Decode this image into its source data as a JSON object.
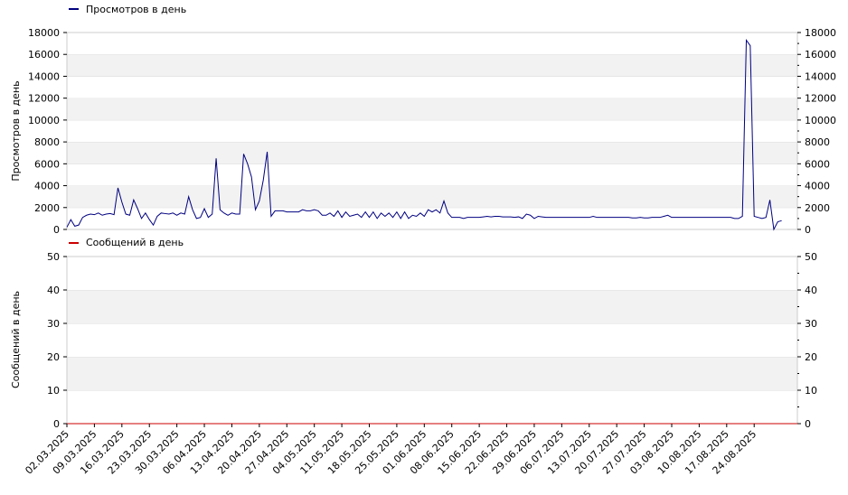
{
  "chart_data": [
    {
      "type": "line",
      "legend": "Просмотров в день",
      "ylabel": "Просмотров в день",
      "color": "#000080",
      "ylim": [
        0,
        18000
      ],
      "yticks": [
        "0",
        "2000",
        "4000",
        "6000",
        "8000",
        "10000",
        "12000",
        "14000",
        "16000",
        "18000"
      ],
      "grid": true,
      "legend_position": "top-left",
      "x_start": "2025-03-02",
      "values": [
        200,
        900,
        300,
        400,
        1100,
        1300,
        1400,
        1350,
        1500,
        1300,
        1400,
        1450,
        1350,
        3800,
        2500,
        1400,
        1300,
        2700,
        1900,
        1000,
        1500,
        900,
        400,
        1200,
        1500,
        1450,
        1400,
        1500,
        1300,
        1500,
        1400,
        3000,
        1800,
        1000,
        1100,
        1900,
        1100,
        1400,
        6500,
        1800,
        1500,
        1300,
        1500,
        1400,
        1400,
        6900,
        6000,
        4800,
        1800,
        2600,
        4500,
        7100,
        1200,
        1700,
        1700,
        1700,
        1600,
        1600,
        1600,
        1600,
        1800,
        1700,
        1700,
        1800,
        1700,
        1300,
        1300,
        1500,
        1200,
        1700,
        1100,
        1600,
        1200,
        1300,
        1400,
        1100,
        1600,
        1100,
        1600,
        1000,
        1500,
        1200,
        1500,
        1100,
        1600,
        1000,
        1600,
        1000,
        1300,
        1200,
        1500,
        1200,
        1800,
        1600,
        1800,
        1500,
        2600,
        1500,
        1100,
        1100,
        1100,
        1000,
        1100,
        1100,
        1100,
        1100,
        1150,
        1200,
        1150,
        1200,
        1200,
        1150,
        1150,
        1150,
        1100,
        1150,
        1000,
        1400,
        1300,
        1000,
        1200,
        1150,
        1100,
        1100,
        1100,
        1100,
        1100,
        1100,
        1100,
        1100,
        1100,
        1100,
        1100,
        1100,
        1200,
        1100,
        1100,
        1100,
        1100,
        1100,
        1100,
        1100,
        1100,
        1100,
        1050,
        1050,
        1100,
        1050,
        1050,
        1100,
        1100,
        1100,
        1200,
        1300,
        1100,
        1100,
        1100,
        1100,
        1100,
        1100,
        1100,
        1100,
        1100,
        1100,
        1100,
        1100,
        1100,
        1100,
        1100,
        1100,
        1000,
        1000,
        1200,
        17300,
        16800,
        1200,
        1100,
        1000,
        1100,
        2700,
        0,
        700,
        800
      ]
    },
    {
      "type": "line",
      "legend": "Сообщений в день",
      "ylabel": "Сообщений в день",
      "color": "#cc0000",
      "ylim": [
        0,
        50
      ],
      "yticks": [
        "0",
        "10",
        "20",
        "30",
        "40",
        "50"
      ],
      "grid": true,
      "legend_position": "top-left",
      "x_start": "2025-03-02",
      "values": [
        0,
        0,
        0,
        0,
        0,
        0,
        0,
        0,
        0,
        0,
        0,
        0,
        0,
        0,
        0,
        0,
        0,
        0,
        0,
        0,
        0,
        0,
        0,
        0,
        0,
        0,
        0,
        0,
        0,
        0,
        0,
        0,
        0,
        0,
        0,
        0,
        0,
        0,
        0,
        0,
        0,
        0,
        0,
        0,
        0,
        0,
        0,
        0,
        0,
        0,
        0,
        0,
        0,
        0,
        0,
        0,
        0,
        0,
        0,
        0,
        0,
        0,
        0,
        0,
        0,
        0,
        0,
        0,
        0,
        0,
        0,
        0,
        0,
        0,
        0,
        0,
        0,
        0,
        0,
        0,
        0,
        0,
        0,
        0,
        0,
        0,
        0,
        0,
        0,
        0,
        0,
        0,
        0,
        0,
        0,
        0,
        0,
        0,
        0,
        0,
        0,
        0,
        0,
        0,
        0,
        0,
        0,
        0,
        0,
        0,
        0,
        0,
        0,
        0,
        0,
        0,
        0,
        0,
        0,
        0,
        0,
        0,
        0,
        0,
        0,
        0,
        0,
        0,
        0,
        0,
        0,
        0,
        0,
        0,
        0,
        0,
        0,
        0,
        0,
        0,
        0,
        0,
        0,
        0,
        0,
        0,
        0,
        0,
        0,
        0,
        0,
        0,
        0,
        0,
        0,
        0,
        0,
        0,
        0,
        0,
        0,
        0,
        0,
        0,
        0,
        0,
        0,
        0,
        0,
        0,
        0,
        0,
        0,
        0,
        0,
        0,
        0,
        0,
        0,
        0,
        0,
        0,
        0,
        0,
        0,
        0,
        0,
        0,
        0,
        1,
        0,
        0,
        0,
        0,
        0,
        0,
        0,
        0,
        0,
        0,
        0,
        0,
        0,
        0,
        0,
        0,
        0,
        0,
        0,
        0,
        0,
        0,
        0,
        0,
        0,
        0,
        0,
        0,
        0,
        0,
        0,
        0,
        0,
        0,
        0,
        0,
        0,
        0,
        0,
        0,
        0,
        0,
        0,
        0,
        0,
        0,
        0,
        0,
        0,
        0,
        0,
        0,
        0,
        0,
        0,
        0,
        0,
        0,
        0,
        0,
        0,
        0,
        0,
        0,
        0,
        0,
        0,
        0,
        0,
        0,
        0,
        0,
        0,
        0,
        0,
        0,
        0,
        0,
        0,
        0,
        0,
        0,
        0,
        0,
        0,
        0,
        0,
        0,
        0,
        0,
        0,
        0,
        0,
        0,
        0,
        0,
        0,
        0,
        0,
        0,
        0,
        0,
        0,
        0,
        0,
        0,
        0,
        0,
        0,
        0,
        0,
        0,
        0,
        0,
        0,
        0,
        0,
        0,
        0,
        0,
        0,
        0,
        0,
        0,
        0,
        0,
        0,
        0,
        0,
        0,
        0,
        0,
        0,
        0,
        0,
        0,
        0,
        0,
        0,
        0,
        0,
        0,
        0,
        0,
        0,
        0,
        0,
        0,
        0,
        0,
        0,
        0,
        0,
        0,
        0,
        0,
        0,
        0,
        0,
        0,
        0,
        0,
        0,
        0,
        0,
        0,
        0,
        0,
        0,
        0,
        0,
        0,
        0,
        0,
        0,
        0,
        0,
        0,
        0,
        0,
        0,
        0,
        0,
        0,
        0,
        0,
        0,
        0,
        0,
        0,
        0,
        0,
        0,
        0,
        0,
        0,
        0,
        0,
        0,
        0,
        0,
        0,
        0,
        0,
        0,
        0,
        0,
        0,
        0,
        0,
        0,
        0,
        0,
        0,
        0,
        0,
        0,
        0,
        0,
        0,
        0,
        0,
        0,
        0,
        0,
        0,
        0,
        0,
        0,
        0,
        0,
        0,
        0,
        0,
        0,
        0,
        0,
        0,
        0,
        0,
        0,
        0,
        0,
        0,
        0,
        0,
        0,
        0,
        0,
        0,
        0,
        0,
        0,
        0,
        0,
        0,
        0,
        0,
        0,
        0,
        0,
        0,
        0,
        0,
        0,
        0,
        0,
        0,
        0,
        0,
        0,
        0,
        0,
        0,
        0,
        0,
        0,
        0,
        0,
        0,
        0,
        0,
        0,
        0,
        0,
        0,
        0,
        0,
        0,
        0,
        0,
        0,
        0,
        0,
        0,
        0,
        0,
        0,
        0,
        0,
        0,
        0,
        0,
        0,
        0,
        0,
        0,
        0,
        0,
        0,
        0,
        0
      ]
    }
  ],
  "x_ticks": [
    "02.03.2025",
    "09.03.2025",
    "16.03.2025",
    "23.03.2025",
    "30.03.2025",
    "06.04.2025",
    "13.04.2025",
    "20.04.2025",
    "27.04.2025",
    "04.05.2025",
    "11.05.2025",
    "18.05.2025",
    "25.05.2025",
    "01.06.2025",
    "08.06.2025",
    "15.06.2025",
    "22.06.2025",
    "29.06.2025",
    "06.07.2025",
    "13.07.2025",
    "20.07.2025",
    "27.07.2025",
    "03.08.2025",
    "10.08.2025",
    "17.08.2025",
    "24.08.2025"
  ]
}
